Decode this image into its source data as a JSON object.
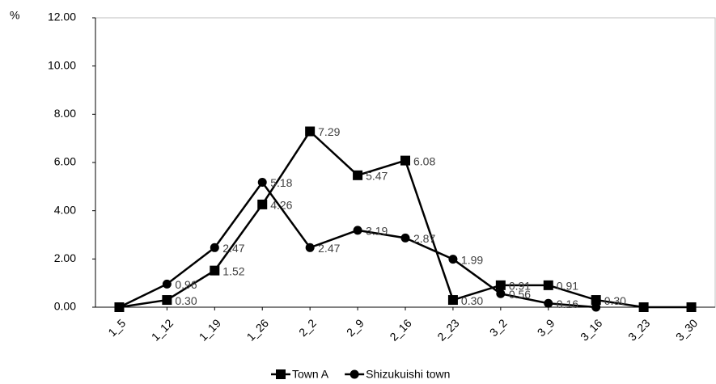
{
  "chart_data": {
    "type": "line",
    "y_label": "%",
    "categories": [
      "1_5",
      "1_12",
      "1_19",
      "1_26",
      "2_2",
      "2_9",
      "2_16",
      "2_23",
      "3_2",
      "3_9",
      "3_16",
      "3_23",
      "3_30"
    ],
    "series": [
      {
        "name": "Town A",
        "color": "#000000",
        "marker": "square",
        "values": [
          0,
          0.3,
          1.52,
          4.26,
          7.29,
          5.47,
          6.08,
          0.3,
          0.91,
          0.91,
          0.3,
          0,
          0
        ],
        "value_labels": [
          null,
          "0.30",
          "1.52",
          "4.26",
          "7.29",
          "5.47",
          "6.08",
          "0.30",
          "0.91",
          "0.91",
          "0.30",
          null,
          null
        ]
      },
      {
        "name": "Shizukuishi town",
        "color": "#000000",
        "marker": "circle",
        "values": [
          0,
          0.96,
          2.47,
          5.18,
          2.47,
          3.19,
          2.87,
          1.99,
          0.56,
          0.16,
          0,
          null,
          null
        ],
        "value_labels": [
          null,
          "0.96",
          "2.47",
          "5.18",
          "2.47",
          "3.19",
          "2.87",
          "1.99",
          "0.56",
          "0.16",
          null,
          null,
          null
        ]
      }
    ],
    "ylim": [
      0,
      12
    ],
    "yticks": [
      {
        "value": 0,
        "label": "0.00"
      },
      {
        "value": 2,
        "label": "2.00"
      },
      {
        "value": 4,
        "label": "4.00"
      },
      {
        "value": 6,
        "label": "6.00"
      },
      {
        "value": 8,
        "label": "8.00"
      },
      {
        "value": 10,
        "label": "10.00"
      },
      {
        "value": 12,
        "label": "12.00"
      }
    ],
    "legend": "bottom"
  }
}
